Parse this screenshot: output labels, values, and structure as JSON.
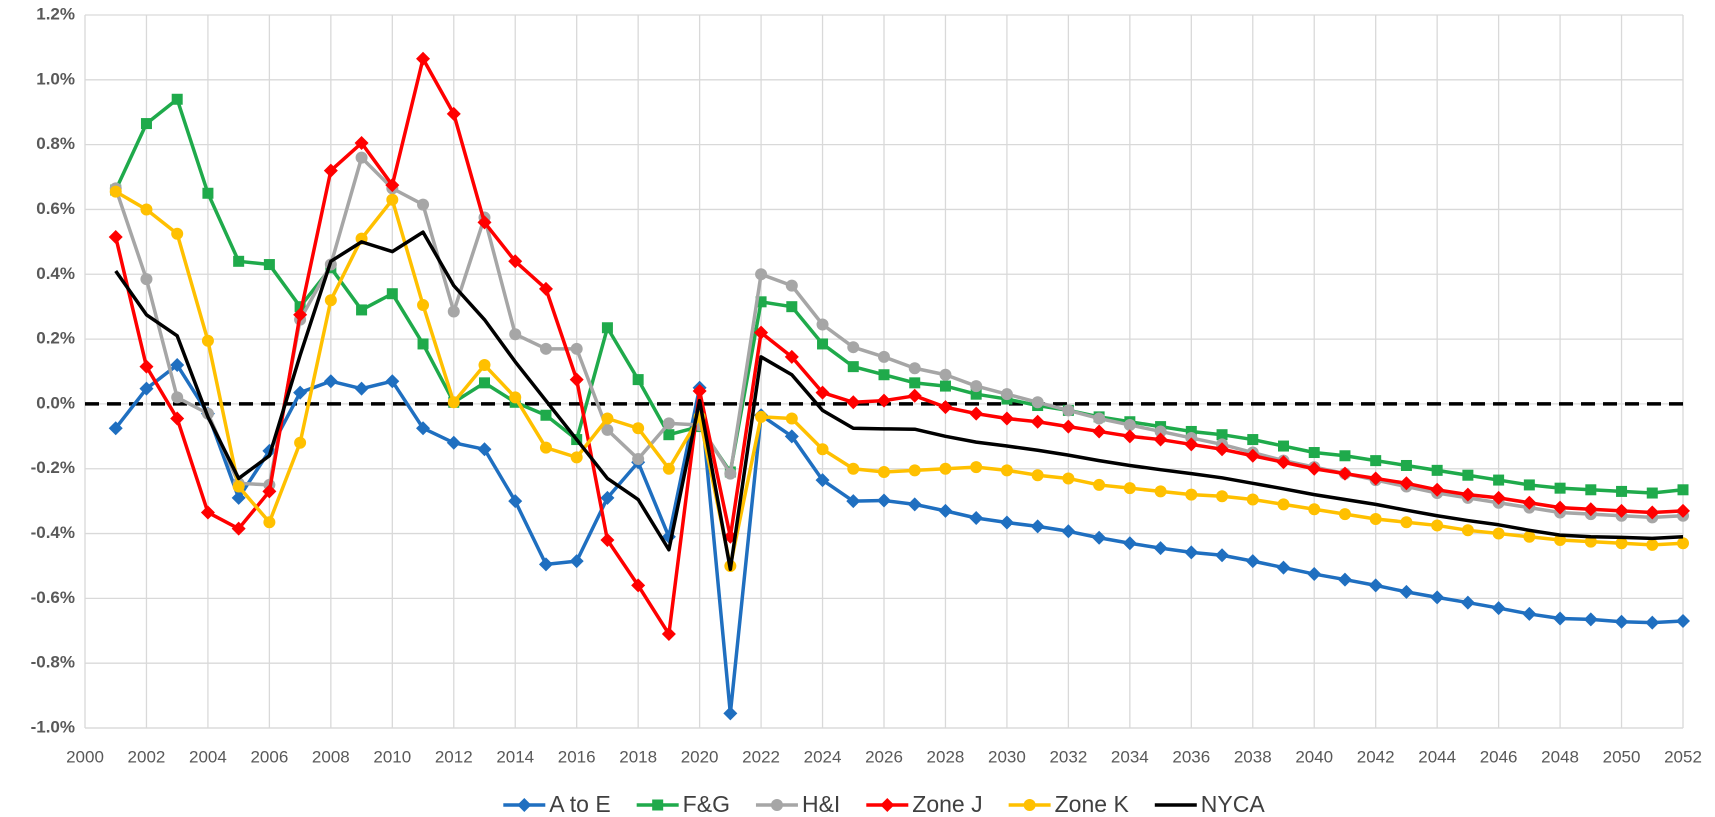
{
  "chart_data": {
    "type": "line",
    "x": [
      2001,
      2002,
      2003,
      2004,
      2005,
      2006,
      2007,
      2008,
      2009,
      2010,
      2011,
      2012,
      2013,
      2014,
      2015,
      2016,
      2017,
      2018,
      2019,
      2020,
      2021,
      2022,
      2023,
      2024,
      2025,
      2026,
      2027,
      2028,
      2029,
      2030,
      2031,
      2032,
      2033,
      2034,
      2035,
      2036,
      2037,
      2038,
      2039,
      2040,
      2041,
      2042,
      2043,
      2044,
      2045,
      2046,
      2047,
      2048,
      2049,
      2050,
      2051,
      2052
    ],
    "series": [
      {
        "name": "A to E",
        "color": "#1f6fc0",
        "marker": "diamond",
        "values": [
          -0.075,
          0.047,
          0.12,
          -0.03,
          -0.29,
          -0.145,
          0.035,
          0.07,
          0.047,
          0.07,
          -0.075,
          -0.12,
          -0.14,
          -0.3,
          -0.495,
          -0.485,
          -0.29,
          -0.18,
          -0.41,
          0.05,
          -0.955,
          -0.035,
          -0.1,
          -0.235,
          -0.3,
          -0.298,
          -0.31,
          -0.33,
          -0.352,
          -0.366,
          -0.378,
          -0.393,
          -0.413,
          -0.43,
          -0.445,
          -0.458,
          -0.467,
          -0.485,
          -0.505,
          -0.525,
          -0.542,
          -0.56,
          -0.58,
          -0.597,
          -0.613,
          -0.63,
          -0.648,
          -0.662,
          -0.665,
          -0.672,
          -0.675,
          -0.67
        ]
      },
      {
        "name": "F&G",
        "color": "#1faa4b",
        "marker": "square",
        "values": [
          0.66,
          0.865,
          0.94,
          0.65,
          0.44,
          0.43,
          0.3,
          0.42,
          0.29,
          0.34,
          0.185,
          0.005,
          0.065,
          0.005,
          -0.035,
          -0.11,
          0.235,
          0.075,
          -0.095,
          -0.07,
          -0.21,
          0.315,
          0.3,
          0.185,
          0.115,
          0.09,
          0.065,
          0.055,
          0.03,
          0.015,
          -0.005,
          -0.02,
          -0.04,
          -0.055,
          -0.07,
          -0.085,
          -0.095,
          -0.11,
          -0.13,
          -0.15,
          -0.16,
          -0.175,
          -0.19,
          -0.205,
          -0.22,
          -0.235,
          -0.25,
          -0.26,
          -0.265,
          -0.27,
          -0.275,
          -0.265
        ]
      },
      {
        "name": "H&I",
        "color": "#a6a6a6",
        "marker": "circle",
        "values": [
          0.665,
          0.385,
          0.02,
          -0.03,
          -0.245,
          -0.25,
          0.26,
          0.43,
          0.76,
          0.665,
          0.615,
          0.285,
          0.575,
          0.215,
          0.17,
          0.17,
          -0.08,
          -0.17,
          -0.06,
          -0.065,
          -0.215,
          0.4,
          0.365,
          0.245,
          0.175,
          0.145,
          0.11,
          0.09,
          0.055,
          0.03,
          0.005,
          -0.02,
          -0.045,
          -0.065,
          -0.085,
          -0.105,
          -0.125,
          -0.15,
          -0.175,
          -0.195,
          -0.215,
          -0.235,
          -0.255,
          -0.275,
          -0.29,
          -0.305,
          -0.32,
          -0.335,
          -0.34,
          -0.345,
          -0.35,
          -0.345
        ]
      },
      {
        "name": "Zone J",
        "color": "#ff0000",
        "marker": "diamond",
        "values": [
          0.515,
          0.115,
          -0.045,
          -0.335,
          -0.385,
          -0.27,
          0.275,
          0.72,
          0.805,
          0.675,
          1.065,
          0.895,
          0.56,
          0.44,
          0.355,
          0.075,
          -0.42,
          -0.56,
          -0.71,
          0.04,
          -0.41,
          0.22,
          0.145,
          0.035,
          0.005,
          0.01,
          0.025,
          -0.01,
          -0.03,
          -0.045,
          -0.055,
          -0.07,
          -0.085,
          -0.1,
          -0.11,
          -0.125,
          -0.14,
          -0.16,
          -0.18,
          -0.2,
          -0.215,
          -0.23,
          -0.245,
          -0.265,
          -0.28,
          -0.29,
          -0.305,
          -0.32,
          -0.325,
          -0.33,
          -0.335,
          -0.33
        ]
      },
      {
        "name": "Zone K",
        "color": "#ffc000",
        "marker": "circle",
        "values": [
          0.655,
          0.6,
          0.525,
          0.195,
          -0.255,
          -0.365,
          -0.12,
          0.32,
          0.51,
          0.63,
          0.305,
          0.005,
          0.12,
          0.02,
          -0.135,
          -0.165,
          -0.045,
          -0.075,
          -0.2,
          -0.04,
          -0.5,
          -0.04,
          -0.045,
          -0.14,
          -0.2,
          -0.21,
          -0.205,
          -0.2,
          -0.195,
          -0.205,
          -0.22,
          -0.23,
          -0.25,
          -0.26,
          -0.27,
          -0.28,
          -0.285,
          -0.295,
          -0.31,
          -0.325,
          -0.34,
          -0.355,
          -0.365,
          -0.375,
          -0.39,
          -0.4,
          -0.41,
          -0.42,
          -0.425,
          -0.43,
          -0.435,
          -0.43
        ]
      },
      {
        "name": "NYCA",
        "color": "#000000",
        "marker": "none",
        "values": [
          0.41,
          0.275,
          0.21,
          -0.04,
          -0.23,
          -0.16,
          0.15,
          0.44,
          0.5,
          0.47,
          0.53,
          0.365,
          0.26,
          0.13,
          0.01,
          -0.11,
          -0.23,
          -0.295,
          -0.45,
          0.01,
          -0.51,
          0.145,
          0.09,
          -0.02,
          -0.075,
          -0.077,
          -0.078,
          -0.1,
          -0.118,
          -0.13,
          -0.143,
          -0.158,
          -0.175,
          -0.19,
          -0.203,
          -0.215,
          -0.228,
          -0.245,
          -0.262,
          -0.28,
          -0.295,
          -0.31,
          -0.328,
          -0.345,
          -0.36,
          -0.373,
          -0.39,
          -0.405,
          -0.41,
          -0.412,
          -0.415,
          -0.41
        ]
      }
    ],
    "xlim": [
      2000,
      2052
    ],
    "xticks": [
      2000,
      2002,
      2004,
      2006,
      2008,
      2010,
      2012,
      2014,
      2016,
      2018,
      2020,
      2022,
      2024,
      2026,
      2028,
      2030,
      2032,
      2034,
      2036,
      2038,
      2040,
      2042,
      2044,
      2046,
      2048,
      2050,
      2052
    ],
    "ylim": [
      -1.0,
      1.2
    ],
    "yticks": [
      {
        "value": -1.0,
        "label": "-1.0%"
      },
      {
        "value": -0.8,
        "label": "-0.8%"
      },
      {
        "value": -0.6,
        "label": "-0.6%"
      },
      {
        "value": -0.4,
        "label": "-0.4%"
      },
      {
        "value": -0.2,
        "label": "-0.2%"
      },
      {
        "value": 0.0,
        "label": "0.0%"
      },
      {
        "value": 0.2,
        "label": "0.2%"
      },
      {
        "value": 0.4,
        "label": "0.4%"
      },
      {
        "value": 0.6,
        "label": "0.6%"
      },
      {
        "value": 0.8,
        "label": "0.8%"
      },
      {
        "value": 1.0,
        "label": "1.0%"
      },
      {
        "value": 1.2,
        "label": "1.2%"
      }
    ],
    "grid": true,
    "reference_line": 0,
    "legend": "bottom"
  }
}
